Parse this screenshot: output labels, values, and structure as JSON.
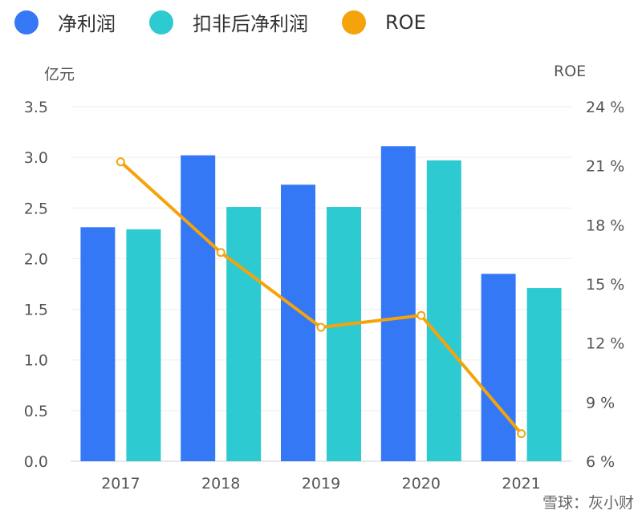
{
  "legend": [
    {
      "label": "净利润",
      "color": "#3478f6"
    },
    {
      "label": "扣非后净利润",
      "color": "#2ecad1"
    },
    {
      "label": "ROE",
      "color": "#f5a30b"
    }
  ],
  "left_unit": "亿元",
  "right_unit": "ROE",
  "watermark": "雪球：灰小财",
  "chart_data": {
    "type": "bar",
    "categories": [
      "2017",
      "2018",
      "2019",
      "2020",
      "2021"
    ],
    "series": [
      {
        "name": "净利润",
        "values": [
          2.31,
          3.02,
          2.73,
          3.11,
          1.85
        ],
        "color": "#3478f6"
      },
      {
        "name": "扣非后净利润",
        "values": [
          2.29,
          2.51,
          2.51,
          2.97,
          1.71
        ],
        "color": "#2ecad1"
      },
      {
        "name": "ROE",
        "values": [
          21.2,
          16.6,
          12.8,
          13.4,
          7.4
        ],
        "color": "#f5a30b",
        "axis": "right",
        "type": "line"
      }
    ],
    "ylim": [
      0,
      3.5
    ],
    "yticks": [
      "0.0",
      "0.5",
      "1.0",
      "1.5",
      "2.0",
      "2.5",
      "3.0",
      "3.5"
    ],
    "y2lim": [
      6,
      24
    ],
    "y2ticks": [
      "6 %",
      "9 %",
      "12 %",
      "15 %",
      "18 %",
      "21 %",
      "24 %"
    ],
    "grid": true,
    "legend_position": "top"
  }
}
